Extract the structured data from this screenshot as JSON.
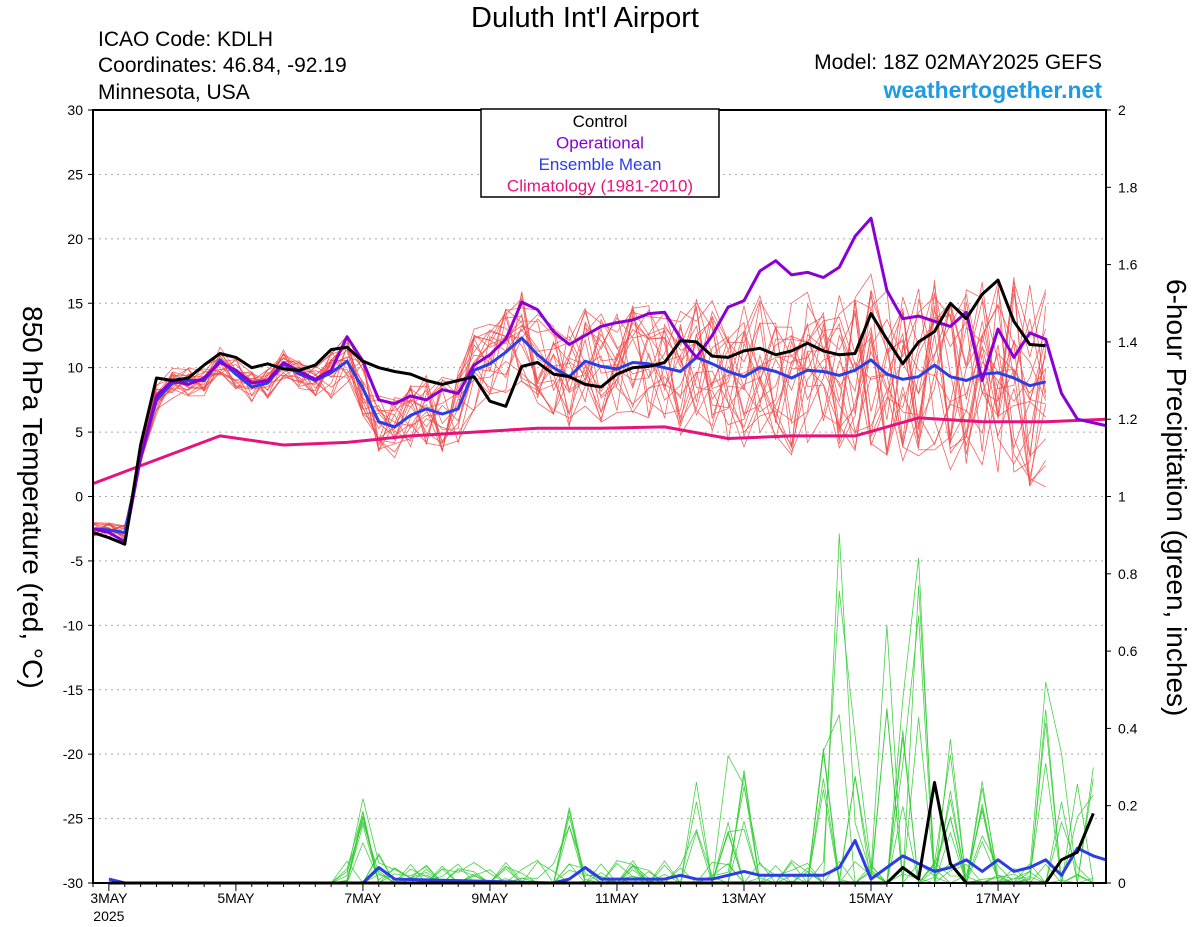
{
  "header": {
    "title": "Duluth Int'l Airport",
    "icao": "ICAO Code: KDLH",
    "coordinates": "Coordinates: 46.84, -92.19",
    "location": "Minnesota, USA",
    "model": "Model: 18Z 02MAY2025 GEFS",
    "site": "weathertogether.net"
  },
  "colors": {
    "operational": "#8a00d4",
    "ensemble_mean": "#2a3de6",
    "climatology": "#e6137e",
    "control": "#000000",
    "members_temp": "#f04a4a",
    "members_precip": "#33cc33",
    "site_link": "#1e9be6"
  },
  "chart_data": {
    "type": "line",
    "title": "Duluth Int'l Airport",
    "ylabel": "850 hPa Temperature (red, °C)",
    "y2label": "6-hour Precipitation (green, inches)",
    "ylim": [
      -30,
      30
    ],
    "y2lim": [
      0,
      2
    ],
    "xlim": [
      -0.25,
      15.7
    ],
    "yticks": [
      30,
      25,
      20,
      15,
      10,
      5,
      0,
      -5,
      -10,
      -15,
      -20,
      -25,
      -30
    ],
    "y2ticks": [
      "2",
      "1.8",
      "1.6",
      "1.4",
      "1.2",
      "1",
      "0.8",
      "0.6",
      "0.4",
      "0.2",
      "0"
    ],
    "xticks": [
      {
        "x": 0,
        "label": "3MAY",
        "sub": "2025"
      },
      {
        "x": 2,
        "label": "5MAY"
      },
      {
        "x": 4,
        "label": "7MAY"
      },
      {
        "x": 6,
        "label": "9MAY"
      },
      {
        "x": 8,
        "label": "11MAY"
      },
      {
        "x": 10,
        "label": "13MAY"
      },
      {
        "x": 12,
        "label": "15MAY"
      },
      {
        "x": 14,
        "label": "17MAY"
      }
    ],
    "grid": true,
    "legend_position": "top-center",
    "legend": [
      "Control",
      "Operational",
      "Ensemble Mean",
      "Climatology (1981-2010)"
    ],
    "series": [
      {
        "name": "Climatology (1981-2010)",
        "axis": "temperature",
        "points": [
          [
            -0.25,
            1.0
          ],
          [
            1.75,
            4.7
          ],
          [
            2.75,
            4.0
          ],
          [
            3.75,
            4.2
          ],
          [
            4.75,
            4.7
          ],
          [
            5.75,
            5.0
          ],
          [
            6.75,
            5.3
          ],
          [
            7.75,
            5.3
          ],
          [
            8.75,
            5.4
          ],
          [
            9.75,
            4.5
          ],
          [
            10.75,
            4.7
          ],
          [
            11.75,
            4.7
          ],
          [
            12.75,
            6.1
          ],
          [
            13.75,
            5.8
          ],
          [
            14.75,
            5.8
          ],
          [
            15.7,
            6.0
          ]
        ]
      },
      {
        "name": "Ensemble Mean",
        "axis": "temperature",
        "points": [
          [
            -0.25,
            -2.5
          ],
          [
            0,
            -2.6
          ],
          [
            0.25,
            -2.8
          ],
          [
            0.5,
            3.0
          ],
          [
            0.75,
            7.5
          ],
          [
            1,
            8.8
          ],
          [
            1.25,
            9.0
          ],
          [
            1.5,
            9.0
          ],
          [
            1.75,
            10.6
          ],
          [
            2,
            9.5
          ],
          [
            2.25,
            8.5
          ],
          [
            2.5,
            8.8
          ],
          [
            2.75,
            10.3
          ],
          [
            3,
            9.5
          ],
          [
            3.25,
            9.0
          ],
          [
            3.5,
            9.6
          ],
          [
            3.75,
            10.5
          ],
          [
            4,
            8.4
          ],
          [
            4.25,
            5.8
          ],
          [
            4.5,
            5.4
          ],
          [
            4.75,
            6.3
          ],
          [
            5,
            6.8
          ],
          [
            5.25,
            6.4
          ],
          [
            5.5,
            6.8
          ],
          [
            5.75,
            9.8
          ],
          [
            6,
            10.3
          ],
          [
            6.25,
            11.2
          ],
          [
            6.5,
            12.3
          ],
          [
            6.75,
            11.0
          ],
          [
            7,
            10.0
          ],
          [
            7.25,
            9.3
          ],
          [
            7.5,
            10.5
          ],
          [
            7.75,
            10.1
          ],
          [
            8,
            9.9
          ],
          [
            8.25,
            10.4
          ],
          [
            8.5,
            10.3
          ],
          [
            8.75,
            10.0
          ],
          [
            9,
            9.7
          ],
          [
            9.25,
            10.8
          ],
          [
            9.5,
            10.3
          ],
          [
            9.75,
            9.7
          ],
          [
            10,
            9.3
          ],
          [
            10.25,
            10.0
          ],
          [
            10.5,
            9.7
          ],
          [
            10.75,
            9.2
          ],
          [
            11,
            9.8
          ],
          [
            11.25,
            9.7
          ],
          [
            11.5,
            9.4
          ],
          [
            11.75,
            9.8
          ],
          [
            12,
            10.6
          ],
          [
            12.25,
            9.5
          ],
          [
            12.5,
            9.1
          ],
          [
            12.75,
            9.3
          ],
          [
            13,
            10.2
          ],
          [
            13.25,
            9.3
          ],
          [
            13.5,
            9.0
          ],
          [
            13.75,
            9.5
          ],
          [
            14,
            9.6
          ],
          [
            14.25,
            9.2
          ],
          [
            14.5,
            8.6
          ],
          [
            14.75,
            8.9
          ]
        ]
      },
      {
        "name": "Operational",
        "axis": "temperature",
        "points": [
          [
            -0.25,
            -2.5
          ],
          [
            0,
            -2.8
          ],
          [
            0.25,
            -3.5
          ],
          [
            0.5,
            3.0
          ],
          [
            0.75,
            7.8
          ],
          [
            1,
            9.0
          ],
          [
            1.25,
            8.7
          ],
          [
            1.5,
            9.2
          ],
          [
            1.75,
            10.4
          ],
          [
            2,
            9.8
          ],
          [
            2.25,
            8.8
          ],
          [
            2.5,
            9.0
          ],
          [
            2.75,
            10.4
          ],
          [
            3,
            9.7
          ],
          [
            3.25,
            9.1
          ],
          [
            3.5,
            9.8
          ],
          [
            3.75,
            12.4
          ],
          [
            4,
            10.5
          ],
          [
            4.25,
            7.5
          ],
          [
            4.5,
            7.2
          ],
          [
            4.75,
            7.8
          ],
          [
            5,
            7.5
          ],
          [
            5.25,
            8.3
          ],
          [
            5.5,
            8.0
          ],
          [
            5.75,
            10.2
          ],
          [
            6,
            11.0
          ],
          [
            6.25,
            12.2
          ],
          [
            6.5,
            15.1
          ],
          [
            6.75,
            14.5
          ],
          [
            7,
            12.8
          ],
          [
            7.25,
            11.8
          ],
          [
            7.5,
            12.5
          ],
          [
            7.75,
            13.2
          ],
          [
            8,
            13.5
          ],
          [
            8.25,
            13.7
          ],
          [
            8.5,
            14.2
          ],
          [
            8.75,
            14.3
          ],
          [
            9,
            12.3
          ],
          [
            9.25,
            10.8
          ],
          [
            9.5,
            12.5
          ],
          [
            9.75,
            14.7
          ],
          [
            10,
            15.2
          ],
          [
            10.25,
            17.5
          ],
          [
            10.5,
            18.3
          ],
          [
            10.75,
            17.2
          ],
          [
            11,
            17.4
          ],
          [
            11.25,
            17.0
          ],
          [
            11.5,
            17.8
          ],
          [
            11.75,
            20.2
          ],
          [
            12,
            21.6
          ],
          [
            12.25,
            16.0
          ],
          [
            12.5,
            13.8
          ],
          [
            12.75,
            14.0
          ],
          [
            13,
            13.6
          ],
          [
            13.25,
            13.2
          ],
          [
            13.5,
            14.3
          ],
          [
            13.75,
            9.0
          ],
          [
            14,
            13.0
          ],
          [
            14.25,
            10.8
          ],
          [
            14.5,
            12.7
          ],
          [
            14.75,
            12.2
          ],
          [
            15,
            8.0
          ],
          [
            15.25,
            6.0
          ],
          [
            15.7,
            5.5
          ]
        ]
      },
      {
        "name": "Control",
        "axis": "temperature",
        "points": [
          [
            -0.25,
            -2.8
          ],
          [
            0,
            -3.2
          ],
          [
            0.25,
            -3.7
          ],
          [
            0.5,
            4.0
          ],
          [
            0.75,
            9.2
          ],
          [
            1,
            9.0
          ],
          [
            1.25,
            9.2
          ],
          [
            1.5,
            10.2
          ],
          [
            1.75,
            11.1
          ],
          [
            2,
            10.8
          ],
          [
            2.25,
            10.0
          ],
          [
            2.5,
            10.3
          ],
          [
            2.75,
            9.9
          ],
          [
            3,
            9.8
          ],
          [
            3.25,
            10.2
          ],
          [
            3.5,
            11.4
          ],
          [
            3.75,
            11.6
          ],
          [
            4,
            10.5
          ],
          [
            4.25,
            10.0
          ],
          [
            4.5,
            9.7
          ],
          [
            4.75,
            9.5
          ],
          [
            5,
            9.0
          ],
          [
            5.25,
            8.7
          ],
          [
            5.5,
            9.0
          ],
          [
            5.75,
            9.3
          ],
          [
            6,
            7.4
          ],
          [
            6.25,
            7.0
          ],
          [
            6.5,
            10.1
          ],
          [
            6.75,
            10.4
          ],
          [
            7,
            9.5
          ],
          [
            7.25,
            9.3
          ],
          [
            7.5,
            8.7
          ],
          [
            7.75,
            8.5
          ],
          [
            8,
            9.5
          ],
          [
            8.25,
            10.0
          ],
          [
            8.5,
            10.1
          ],
          [
            8.75,
            10.4
          ],
          [
            9,
            12.1
          ],
          [
            9.25,
            12.0
          ],
          [
            9.5,
            10.9
          ],
          [
            9.75,
            10.8
          ],
          [
            10,
            11.3
          ],
          [
            10.25,
            11.5
          ],
          [
            10.5,
            11.0
          ],
          [
            10.75,
            11.3
          ],
          [
            11,
            11.9
          ],
          [
            11.25,
            11.3
          ],
          [
            11.5,
            11.0
          ],
          [
            11.75,
            11.1
          ],
          [
            12,
            14.2
          ],
          [
            12.25,
            12.2
          ],
          [
            12.5,
            10.3
          ],
          [
            12.75,
            12.0
          ],
          [
            13,
            12.8
          ],
          [
            13.25,
            15.0
          ],
          [
            13.5,
            13.8
          ],
          [
            13.75,
            15.7
          ],
          [
            14,
            16.8
          ],
          [
            14.25,
            13.6
          ],
          [
            14.5,
            11.8
          ],
          [
            14.75,
            11.7
          ]
        ]
      },
      {
        "name": "Ensemble Mean",
        "axis": "precipitation",
        "points": [
          [
            0,
            0.01
          ],
          [
            0.25,
            0.0
          ],
          [
            4,
            0.0
          ],
          [
            4.25,
            0.04
          ],
          [
            4.5,
            0.01
          ],
          [
            7,
            0.0
          ],
          [
            7.25,
            0.01
          ],
          [
            7.5,
            0.04
          ],
          [
            7.75,
            0.01
          ],
          [
            8.75,
            0.01
          ],
          [
            9.0,
            0.02
          ],
          [
            9.25,
            0.01
          ],
          [
            9.5,
            0.01
          ],
          [
            9.75,
            0.02
          ],
          [
            10,
            0.03
          ],
          [
            10.25,
            0.02
          ],
          [
            10.5,
            0.02
          ],
          [
            10.75,
            0.02
          ],
          [
            11,
            0.02
          ],
          [
            11.25,
            0.02
          ],
          [
            11.5,
            0.04
          ],
          [
            11.75,
            0.11
          ],
          [
            12,
            0.01
          ],
          [
            12.25,
            0.04
          ],
          [
            12.5,
            0.07
          ],
          [
            12.75,
            0.05
          ],
          [
            13,
            0.03
          ],
          [
            13.25,
            0.04
          ],
          [
            13.5,
            0.06
          ],
          [
            13.75,
            0.03
          ],
          [
            14,
            0.06
          ],
          [
            14.25,
            0.03
          ],
          [
            14.5,
            0.04
          ],
          [
            14.75,
            0.06
          ],
          [
            15,
            0.02
          ],
          [
            15.25,
            0.09
          ],
          [
            15.5,
            0.07
          ],
          [
            15.7,
            0.06
          ]
        ]
      },
      {
        "name": "Control",
        "axis": "precipitation",
        "points": [
          [
            0,
            0.0
          ],
          [
            12.25,
            0.0
          ],
          [
            12.5,
            0.04
          ],
          [
            12.75,
            0.01
          ],
          [
            13,
            0.26
          ],
          [
            13.25,
            0.05
          ],
          [
            13.5,
            0.0
          ],
          [
            14.75,
            0.0
          ],
          [
            15,
            0.06
          ],
          [
            15.25,
            0.08
          ],
          [
            15.5,
            0.18
          ]
        ]
      }
    ]
  }
}
